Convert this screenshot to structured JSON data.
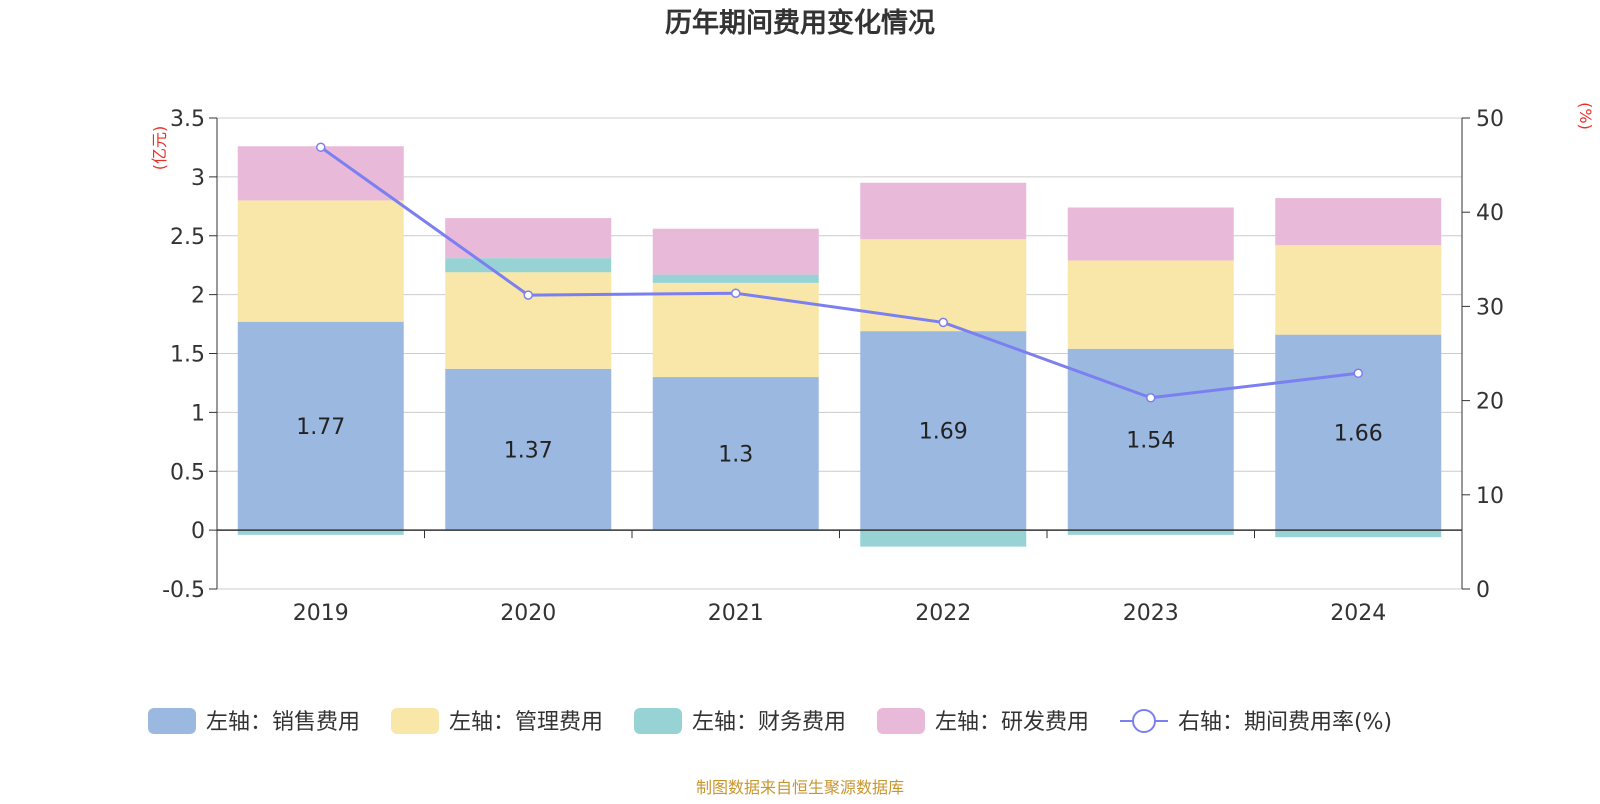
{
  "chart_data": {
    "type": "bar",
    "stacked": true,
    "title": "历年期间费用变化情况",
    "categories": [
      "2019",
      "2020",
      "2021",
      "2022",
      "2023",
      "2024"
    ],
    "left_axis": {
      "unit_label": "(亿元)",
      "ylim": [
        -0.5,
        3.5
      ],
      "ticks": [
        "3.5",
        "3",
        "2.5",
        "2",
        "1.5",
        "1",
        "0.5",
        "0",
        "-0.5"
      ]
    },
    "right_axis": {
      "unit_label": "(%)",
      "ylim": [
        0,
        50
      ],
      "ticks": [
        "50",
        "40",
        "30",
        "20",
        "10",
        "0"
      ]
    },
    "series": [
      {
        "name": "左轴：销售费用",
        "axis": "left",
        "color": "#9bb8e0",
        "values": [
          1.77,
          1.37,
          1.3,
          1.69,
          1.54,
          1.66
        ],
        "labels": [
          "1.77",
          "1.37",
          "1.3",
          "1.69",
          "1.54",
          "1.66"
        ]
      },
      {
        "name": "左轴：管理费用",
        "axis": "left",
        "color": "#f8e7a8",
        "values": [
          1.03,
          0.82,
          0.8,
          0.78,
          0.75,
          0.76
        ]
      },
      {
        "name": "左轴：财务费用",
        "axis": "left",
        "color": "#97d3d4",
        "values": [
          -0.04,
          0.12,
          0.07,
          -0.14,
          -0.04,
          -0.06
        ]
      },
      {
        "name": "左轴：研发费用",
        "axis": "left",
        "color": "#e8b9d9",
        "values": [
          0.46,
          0.34,
          0.39,
          0.48,
          0.45,
          0.4
        ]
      },
      {
        "name": "右轴：期间费用率(%)",
        "axis": "right",
        "type": "line",
        "color": "#7b7ff0",
        "values": [
          46.9,
          31.2,
          31.4,
          28.3,
          20.3,
          22.9
        ]
      }
    ],
    "grid": true,
    "legend_position": "bottom"
  },
  "footer": {
    "source": "制图数据来自恒生聚源数据库"
  }
}
